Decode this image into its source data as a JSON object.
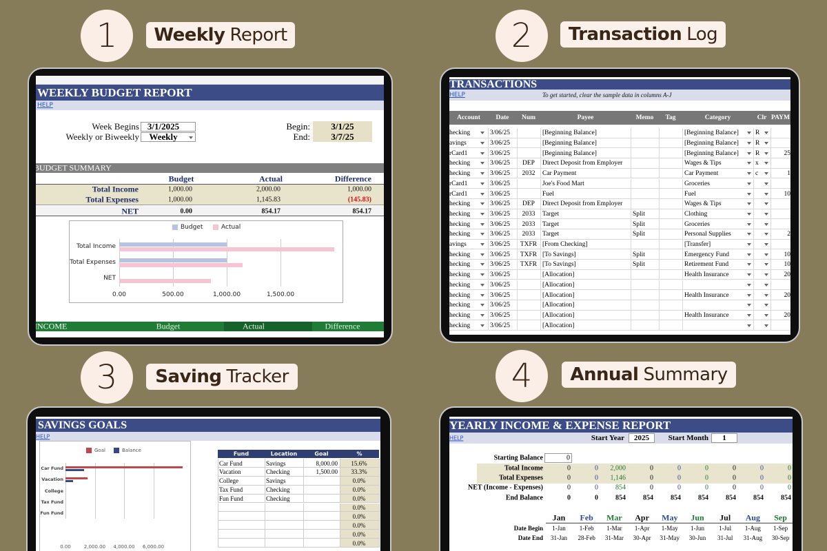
{
  "panels": [
    {
      "number": "1",
      "heading": {
        "bold": "Weekly",
        "rest": "Report"
      },
      "sheet": {
        "title": "WEEKLY BUDGET REPORT",
        "help": "HELP",
        "settings": [
          {
            "label": "Week Begins",
            "value": "3/1/2025"
          },
          {
            "label": "Weekly or Biweekly",
            "value": "Weekly"
          }
        ],
        "range": [
          {
            "label": "Begin:",
            "value": "3/1/25"
          },
          {
            "label": "End:",
            "value": "3/7/25"
          }
        ],
        "summary": {
          "title": "BUDGET SUMMARY",
          "columns": [
            "Budget",
            "Actual",
            "Difference"
          ],
          "rows": [
            {
              "label": "Total Income",
              "cells": [
                "1,000.00",
                "2,000.00",
                "1,000.00"
              ]
            },
            {
              "label": "Total Expenses",
              "cells": [
                "1,000.00",
                "1,145.83",
                "(145.83)"
              ]
            },
            {
              "label": "NET",
              "cells": [
                "0.00",
                "854.17",
                "854.17"
              ]
            }
          ]
        },
        "chart": {
          "type": "bar",
          "categories": [
            "Total Income",
            "Total Expenses",
            "NET"
          ],
          "series": [
            {
              "name": "Budget",
              "color": "#b8c3e2",
              "values": [
                1000,
                1000,
                0
              ]
            },
            {
              "name": "Actual",
              "color": "#f6c4d3",
              "values": [
                2000,
                1145.83,
                854.17
              ]
            }
          ],
          "xlim": [
            0,
            2000
          ],
          "xticks": [
            {
              "value": 0,
              "label": "0.00"
            },
            {
              "value": 500,
              "label": "500.00"
            },
            {
              "value": 1000,
              "label": "1,000.00"
            },
            {
              "value": 1500,
              "label": "1,500.00"
            }
          ],
          "grid": true
        },
        "income": {
          "title": "INCOME",
          "columns": [
            "Budget",
            "Actual",
            "Difference"
          ]
        }
      }
    },
    {
      "number": "2",
      "heading": {
        "bold": "Transaction",
        "rest": "Log"
      },
      "sheet": {
        "title": "TRANSACTIONS",
        "help": "HELP",
        "note": "To get started, clear the sample data in columns A-J",
        "columns": [
          "Account",
          "Date",
          "Num",
          "Payee",
          "Memo",
          "Tag",
          "Category",
          "Clr",
          "PAYM"
        ],
        "rows": [
          {
            "account": "hecking",
            "date": "3/06/25",
            "payee": "[Beginning Balance]",
            "category": "[Beginning Balance]",
            "clr": "R"
          },
          {
            "account": "avings",
            "date": "3/06/25",
            "payee": "[Beginning Balance]",
            "category": "[Beginning Balance]",
            "clr": "R"
          },
          {
            "account": "rCard1",
            "date": "3/06/25",
            "payee": "[Beginning Balance]",
            "category": "[Beginning Balance]",
            "clr": "R",
            "payment": "25"
          },
          {
            "account": "hecking",
            "date": "3/06/25",
            "num": "DEP",
            "payee": "Direct Deposit from Employer",
            "category": "Wages & Tips",
            "clr": "x"
          },
          {
            "account": "hecking",
            "date": "3/06/25",
            "num": "2032",
            "payee": "Car Payment",
            "category": "Car Payment",
            "clr": "c",
            "payment": "1"
          },
          {
            "account": "rCard1",
            "date": "3/06/25",
            "payee": "Joe's Food Mart",
            "category": "Groceries"
          },
          {
            "account": "rCard1",
            "date": "3/06/25",
            "payee": "Fuel",
            "category": "Fuel",
            "payment": "10"
          },
          {
            "account": "hecking",
            "date": "3/06/25",
            "num": "DEP",
            "payee": "Direct Deposit from Employer",
            "category": "Wages & Tips"
          },
          {
            "account": "hecking",
            "date": "3/06/25",
            "num": "2033",
            "payee": "Target",
            "memo": "Split",
            "category": "Clothing"
          },
          {
            "account": "hecking",
            "date": "3/06/25",
            "num": "2033",
            "payee": "Target",
            "memo": "Split",
            "category": "Groceries"
          },
          {
            "account": "hecking",
            "date": "3/06/25",
            "num": "2033",
            "payee": "Target",
            "memo": "Split",
            "category": "Personal Supplies",
            "payment": "2"
          },
          {
            "account": "avings",
            "date": "3/06/25",
            "num": "TXFR",
            "payee": "[From Checking]",
            "category": "[Transfer]"
          },
          {
            "account": "hecking",
            "date": "3/06/25",
            "num": "TXFR",
            "payee": "[To Savings]",
            "memo": "Split",
            "category": "Emergency Fund",
            "payment": "10"
          },
          {
            "account": "hecking",
            "date": "3/06/25",
            "num": "TXFR",
            "payee": "[To Savings]",
            "memo": "Split",
            "category": "Retirement Fund",
            "payment": "10"
          },
          {
            "account": "hecking",
            "date": "3/06/25",
            "payee": "[Allocation]",
            "category": "Health Insurance",
            "payment": "20"
          },
          {
            "account": "hecking",
            "date": "3/06/25",
            "payee": "[Allocation]"
          },
          {
            "account": "hecking",
            "date": "3/06/25",
            "payee": "[Allocation]",
            "category": "Health Insurance",
            "payment": "20"
          },
          {
            "account": "hecking",
            "date": "3/06/25",
            "payee": "[Allocation]"
          },
          {
            "account": "hecking",
            "date": "3/06/25",
            "payee": "[Allocation]",
            "category": "Health Insurance",
            "payment": "20"
          },
          {
            "account": "hecking",
            "date": "3/06/25",
            "payee": "[Allocation]"
          }
        ]
      }
    },
    {
      "number": "3",
      "heading": {
        "bold": "Saving",
        "rest": "Tracker"
      },
      "sheet": {
        "title": "SAVINGS GOALS",
        "help": "HELP",
        "chart": {
          "type": "bar",
          "categories": [
            "Car Fund",
            "Vacation",
            "College",
            "Tax Fund",
            "Fun Fund"
          ],
          "series": [
            {
              "name": "Goal",
              "color": "#c0474a",
              "values": [
                8000,
                1500,
                0,
                0,
                0
              ]
            },
            {
              "name": "Balance",
              "color": "#34478a",
              "values": [
                1250,
                500,
                0,
                0,
                0
              ]
            }
          ],
          "xlim": [
            0,
            8000
          ],
          "xticks": [
            {
              "value": 0,
              "label": "0.00"
            },
            {
              "value": 2000,
              "label": "2,000.00"
            },
            {
              "value": 4000,
              "label": "4,000.00"
            },
            {
              "value": 6000,
              "label": "6,000.00"
            }
          ],
          "grid": true
        },
        "table": {
          "columns": [
            "Fund",
            "Location",
            "Goal",
            "%"
          ],
          "rows": [
            {
              "fund": "Car Fund",
              "location": "Savings",
              "goal": "8,000.00",
              "pct": "15.6%"
            },
            {
              "fund": "Vacation",
              "location": "Checking",
              "goal": "1,500.00",
              "pct": "33.3%"
            },
            {
              "fund": "College",
              "location": "Savings",
              "pct": "0.0%"
            },
            {
              "fund": "Tax Fund",
              "location": "Checking",
              "pct": "0.0%"
            },
            {
              "fund": "Fun Fund",
              "location": "Checking",
              "pct": "0.0%"
            },
            {
              "pct": "0.0%"
            },
            {
              "pct": "0.0%"
            },
            {
              "pct": "0.0%"
            },
            {
              "pct": "0.0%"
            },
            {
              "pct": "0.0%"
            }
          ]
        }
      }
    },
    {
      "number": "4",
      "heading": {
        "bold": "Annual",
        "rest": "Summary"
      },
      "sheet": {
        "title": "YEARLY INCOME & EXPENSE REPORT",
        "help": "HELP",
        "start": [
          {
            "label": "Start Year",
            "value": "2025"
          },
          {
            "label": "Start Month",
            "value": "1"
          }
        ],
        "starting_balance": {
          "label": "Starting Balance",
          "value": "0"
        },
        "rows": [
          {
            "label": "Total Income",
            "cells": [
              "0",
              "0",
              "2,000",
              "0",
              "0",
              "0",
              "0",
              "0",
              "0"
            ]
          },
          {
            "label": "Total Expenses",
            "cells": [
              "0",
              "0",
              "1,146",
              "0",
              "0",
              "0",
              "0",
              "0",
              "0"
            ]
          },
          {
            "label": "NET (Income - Expenses)",
            "cells": [
              "0",
              "0",
              "854",
              "0",
              "0",
              "0",
              "0",
              "0",
              "0"
            ]
          },
          {
            "label": "End Balance",
            "cells": [
              "0",
              "0",
              "854",
              "854",
              "854",
              "854",
              "854",
              "854",
              "854"
            ]
          }
        ],
        "months": [
          "Jan",
          "Feb",
          "Mar",
          "Apr",
          "May",
          "Jun",
          "Jul",
          "Aug",
          "Sep"
        ],
        "date_rows": [
          {
            "label": "Date Begin",
            "cells": [
              "1-Jan",
              "1-Feb",
              "1-Mar",
              "1-Apr",
              "1-May",
              "1-Jun",
              "1-Jul",
              "1-Aug",
              "1-Sep"
            ]
          },
          {
            "label": "Date End",
            "cells": [
              "31-Jan",
              "28-Feb",
              "31-Mar",
              "30-Apr",
              "31-May",
              "30-Jun",
              "31-Jul",
              "31-Aug",
              "30-Sep"
            ]
          }
        ]
      }
    }
  ]
}
